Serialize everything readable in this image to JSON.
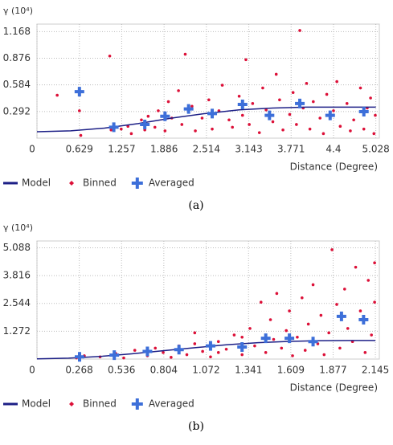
{
  "chart_data": [
    {
      "type": "scatter",
      "ylabel": "γ (10⁴)",
      "xlabel": "Distance (Degree)",
      "caption": "(a)",
      "grid": true,
      "xlim": [
        0,
        5.08
      ],
      "ylim": [
        0,
        1.25
      ],
      "xticks": [
        0,
        0.629,
        1.257,
        1.886,
        2.514,
        3.143,
        3.771,
        4.4,
        5.028
      ],
      "yticks": [
        0.292,
        0.584,
        0.876,
        1.168
      ],
      "series": [
        {
          "name": "Model",
          "mark": "line",
          "color": "#1c1f86",
          "x": [
            0,
            0.5,
            1,
            1.5,
            2,
            2.5,
            3,
            3.5,
            4,
            4.5,
            5.028
          ],
          "values": [
            0.07,
            0.08,
            0.11,
            0.16,
            0.22,
            0.27,
            0.31,
            0.33,
            0.34,
            0.34,
            0.34
          ]
        },
        {
          "name": "Binned",
          "mark": "dot",
          "color": "#dc1038",
          "x": [
            0.3,
            0.63,
            0.65,
            1.08,
            1.1,
            1.25,
            1.35,
            1.4,
            1.55,
            1.6,
            1.65,
            1.75,
            1.8,
            1.9,
            1.95,
            2.0,
            2.1,
            2.15,
            2.2,
            2.3,
            2.35,
            2.45,
            2.55,
            2.6,
            2.7,
            2.75,
            2.85,
            2.9,
            3.0,
            3.05,
            3.1,
            3.15,
            3.2,
            3.3,
            3.35,
            3.4,
            3.5,
            3.55,
            3.6,
            3.65,
            3.75,
            3.8,
            3.85,
            3.9,
            3.95,
            4.0,
            4.05,
            4.1,
            4.2,
            4.25,
            4.3,
            4.4,
            4.45,
            4.5,
            4.6,
            4.65,
            4.7,
            4.8,
            4.85,
            4.9,
            4.95,
            5.0,
            5.02
          ],
          "values": [
            0.47,
            0.3,
            0.03,
            0.9,
            0.09,
            0.1,
            0.13,
            0.05,
            0.2,
            0.09,
            0.24,
            0.12,
            0.3,
            0.08,
            0.4,
            0.22,
            0.52,
            0.15,
            0.92,
            0.35,
            0.08,
            0.22,
            0.42,
            0.1,
            0.3,
            0.58,
            0.2,
            0.12,
            0.46,
            0.25,
            0.86,
            0.15,
            0.38,
            0.06,
            0.55,
            0.31,
            0.18,
            0.7,
            0.42,
            0.09,
            0.26,
            0.5,
            0.15,
            1.18,
            0.33,
            0.6,
            0.1,
            0.4,
            0.22,
            0.05,
            0.48,
            0.3,
            0.62,
            0.13,
            0.38,
            0.08,
            0.2,
            0.55,
            0.1,
            0.33,
            0.44,
            0.05,
            0.25
          ]
        },
        {
          "name": "Averaged",
          "mark": "cross",
          "color": "#3d6fd9",
          "x": [
            0.63,
            1.14,
            1.6,
            1.9,
            2.25,
            2.6,
            3.05,
            3.45,
            3.9,
            4.35,
            4.85
          ],
          "values": [
            0.51,
            0.12,
            0.15,
            0.24,
            0.32,
            0.27,
            0.37,
            0.25,
            0.38,
            0.25,
            0.29
          ]
        }
      ]
    },
    {
      "type": "scatter",
      "ylabel": "γ (10⁴)",
      "xlabel": "Distance (Degree)",
      "caption": "(b)",
      "grid": true,
      "xlim": [
        0,
        2.17
      ],
      "ylim": [
        0,
        5.4
      ],
      "xticks": [
        0,
        0.268,
        0.536,
        0.804,
        1.072,
        1.341,
        1.609,
        1.877,
        2.145
      ],
      "yticks": [
        1.272,
        2.544,
        3.816,
        5.088
      ],
      "series": [
        {
          "name": "Model",
          "mark": "line",
          "color": "#1c1f86",
          "x": [
            0,
            0.2,
            0.4,
            0.6,
            0.8,
            1.0,
            1.2,
            1.4,
            1.6,
            1.8,
            2.0,
            2.145
          ],
          "values": [
            0.01,
            0.04,
            0.12,
            0.24,
            0.38,
            0.52,
            0.65,
            0.75,
            0.81,
            0.84,
            0.85,
            0.85
          ]
        },
        {
          "name": "Binned",
          "mark": "dot",
          "color": "#dc1038",
          "x": [
            0.25,
            0.3,
            0.4,
            0.5,
            0.55,
            0.62,
            0.7,
            0.75,
            0.8,
            0.85,
            0.9,
            0.95,
            1.0,
            1.05,
            1.1,
            1.15,
            1.2,
            1.25,
            1.3,
            1.35,
            1.38,
            1.42,
            1.45,
            1.48,
            1.5,
            1.52,
            1.55,
            1.58,
            1.6,
            1.62,
            1.65,
            1.68,
            1.7,
            1.72,
            1.75,
            1.78,
            1.8,
            1.82,
            1.85,
            1.87,
            1.9,
            1.92,
            1.95,
            1.97,
            2.0,
            2.02,
            2.05,
            2.08,
            2.1,
            2.12,
            2.14,
            2.14,
            1.3,
            1.15,
            1.0
          ],
          "values": [
            0.05,
            0.15,
            0.1,
            0.25,
            0.05,
            0.4,
            0.15,
            0.5,
            0.3,
            0.08,
            0.6,
            0.2,
            0.7,
            0.35,
            0.1,
            0.8,
            0.45,
            1.1,
            0.2,
            1.4,
            0.6,
            2.6,
            0.3,
            1.8,
            0.9,
            3.0,
            0.5,
            1.3,
            2.2,
            0.15,
            1.0,
            2.8,
            0.4,
            1.6,
            3.4,
            0.7,
            2.0,
            0.2,
            1.2,
            5.0,
            2.5,
            0.5,
            3.2,
            1.4,
            0.8,
            4.2,
            2.2,
            0.3,
            3.6,
            1.1,
            4.4,
            2.6,
            1.0,
            0.3,
            1.2
          ]
        },
        {
          "name": "Averaged",
          "mark": "cross",
          "color": "#3d6fd9",
          "x": [
            0.27,
            0.49,
            0.7,
            0.9,
            1.1,
            1.3,
            1.45,
            1.6,
            1.75,
            1.93,
            2.07
          ],
          "values": [
            0.1,
            0.18,
            0.35,
            0.43,
            0.6,
            0.55,
            0.95,
            0.95,
            0.8,
            1.95,
            1.8
          ]
        }
      ]
    }
  ]
}
